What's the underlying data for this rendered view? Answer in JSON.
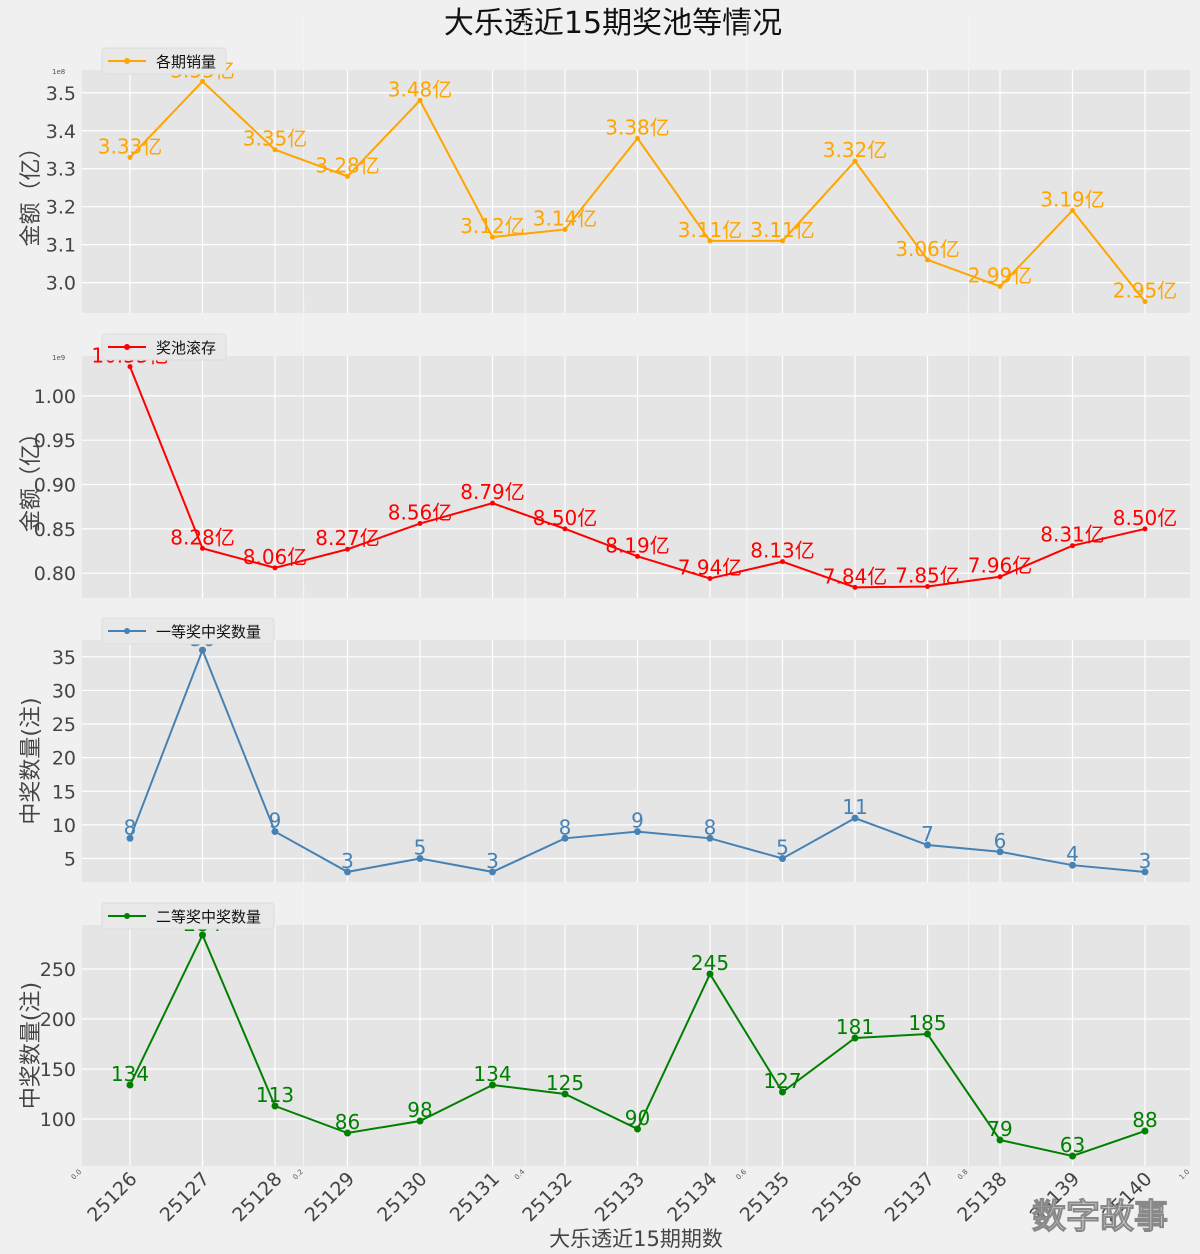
{
  "title": "大乐透近15期奖池等情况",
  "xlabel": "大乐透近15期期数",
  "watermark": "数字故事",
  "chart_data": [
    {
      "type": "line",
      "id": "sales",
      "legend": "各期销量",
      "ylabel": "金额（亿）",
      "color": "#ffa500",
      "categories": [
        "25126",
        "25127",
        "25128",
        "25129",
        "25130",
        "25131",
        "25132",
        "25133",
        "25134",
        "25135",
        "25136",
        "25137",
        "25138",
        "25139",
        "25140"
      ],
      "values": [
        3.33,
        3.53,
        3.35,
        3.28,
        3.48,
        3.12,
        3.14,
        3.38,
        3.11,
        3.11,
        3.32,
        3.06,
        2.99,
        3.19,
        2.95
      ],
      "labels": [
        "3.33亿",
        "3.53亿",
        "3.35亿",
        "3.28亿",
        "3.48亿",
        "3.12亿",
        "3.14亿",
        "3.38亿",
        "3.11亿",
        "3.11亿",
        "3.32亿",
        "3.06亿",
        "2.99亿",
        "3.19亿",
        "2.95亿"
      ],
      "yticks": [
        3.0,
        3.1,
        3.2,
        3.3,
        3.4,
        3.5
      ],
      "ytick_labels": [
        "3.0",
        "3.1",
        "3.2",
        "3.3",
        "3.4",
        "3.5"
      ],
      "ylim": [
        2.92,
        3.56
      ],
      "offset_text": "1e8",
      "grid": true
    },
    {
      "type": "line",
      "id": "pool",
      "legend": "奖池滚存",
      "ylabel": "金额（亿）",
      "color": "#ff0000",
      "categories": [
        "25126",
        "25127",
        "25128",
        "25129",
        "25130",
        "25131",
        "25132",
        "25133",
        "25134",
        "25135",
        "25136",
        "25137",
        "25138",
        "25139",
        "25140"
      ],
      "values": [
        10.33,
        8.28,
        8.06,
        8.27,
        8.56,
        8.79,
        8.5,
        8.19,
        7.94,
        8.13,
        7.84,
        7.85,
        7.96,
        8.31,
        8.5
      ],
      "labels": [
        "10.33亿",
        "8.28亿",
        "8.06亿",
        "8.27亿",
        "8.56亿",
        "8.79亿",
        "8.50亿",
        "8.19亿",
        "7.94亿",
        "8.13亿",
        "7.84亿",
        "7.85亿",
        "7.96亿",
        "8.31亿",
        "8.50亿"
      ],
      "yticks": [
        8.0,
        8.5,
        9.0,
        9.5,
        10.0
      ],
      "ytick_labels": [
        "0.80",
        "0.85",
        "0.90",
        "0.95",
        "1.00"
      ],
      "ylim": [
        7.72,
        10.45
      ],
      "offset_text": "1e9",
      "grid": true
    },
    {
      "type": "line",
      "id": "first",
      "legend": "一等奖中奖数量",
      "ylabel": "中奖数量(注)",
      "color": "#4682b4",
      "categories": [
        "25126",
        "25127",
        "25128",
        "25129",
        "25130",
        "25131",
        "25132",
        "25133",
        "25134",
        "25135",
        "25136",
        "25137",
        "25138",
        "25139",
        "25140"
      ],
      "values": [
        8,
        36,
        9,
        3,
        5,
        3,
        8,
        9,
        8,
        5,
        11,
        7,
        6,
        4,
        3
      ],
      "labels": [
        "8",
        "36",
        "9",
        "3",
        "5",
        "3",
        "8",
        "9",
        "8",
        "5",
        "11",
        "7",
        "6",
        "4",
        "3"
      ],
      "yticks": [
        5,
        10,
        15,
        20,
        25,
        30,
        35
      ],
      "ytick_labels": [
        "5",
        "10",
        "15",
        "20",
        "25",
        "30",
        "35"
      ],
      "ylim": [
        1.5,
        37.5
      ],
      "grid": true
    },
    {
      "type": "line",
      "id": "second",
      "legend": "二等奖中奖数量",
      "ylabel": "中奖数量(注)",
      "color": "#008000",
      "categories": [
        "25126",
        "25127",
        "25128",
        "25129",
        "25130",
        "25131",
        "25132",
        "25133",
        "25134",
        "25135",
        "25136",
        "25137",
        "25138",
        "25139",
        "25140"
      ],
      "values": [
        134,
        284,
        113,
        86,
        98,
        134,
        125,
        90,
        245,
        127,
        181,
        185,
        79,
        63,
        88
      ],
      "labels": [
        "134",
        "284",
        "113",
        "86",
        "98",
        "134",
        "125",
        "90",
        "245",
        "127",
        "181",
        "185",
        "79",
        "63",
        "88"
      ],
      "yticks": [
        100,
        150,
        200,
        250
      ],
      "ytick_labels": [
        "100",
        "150",
        "200",
        "250"
      ],
      "ylim": [
        53,
        294
      ],
      "grid": true
    }
  ],
  "background_axes": {
    "ticks": [
      "0.0",
      "0.2",
      "0.4",
      "0.6",
      "0.8",
      "1.0"
    ]
  }
}
